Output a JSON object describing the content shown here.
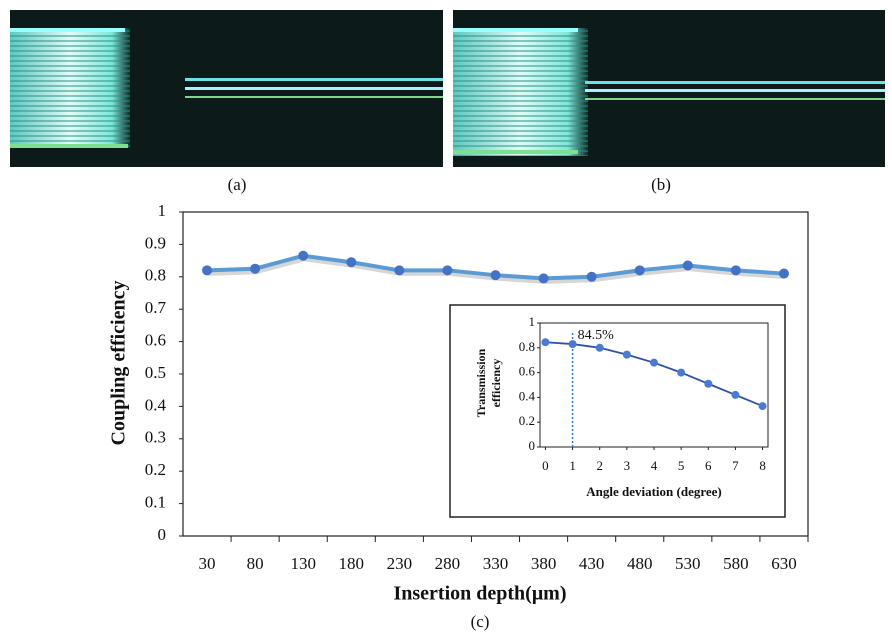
{
  "panels": [
    {
      "label": "(a)"
    },
    {
      "label": "(b)"
    }
  ],
  "caption": "(c)",
  "chart_data": [
    {
      "type": "line",
      "y_label": "Coupling efficiency",
      "x_label": "Insertion depth(μm)",
      "categories": [
        "30",
        "80",
        "130",
        "180",
        "230",
        "280",
        "330",
        "380",
        "430",
        "480",
        "530",
        "580",
        "630"
      ],
      "series": [
        {
          "color": "#5b9bd5",
          "marker_color": "#4472c4",
          "values": [
            0.82,
            0.825,
            0.865,
            0.845,
            0.82,
            0.82,
            0.805,
            0.795,
            0.8,
            0.82,
            0.835,
            0.82,
            0.81
          ]
        }
      ],
      "ylim": [
        0,
        1
      ],
      "yticks": [
        0,
        0.1,
        0.2,
        0.3,
        0.4,
        0.5,
        0.6,
        0.7,
        0.8,
        0.9,
        1
      ]
    },
    {
      "type": "line",
      "y_label": [
        "Transmission",
        "efficiency"
      ],
      "x_label": "Angle deviation (degree)",
      "x": [
        0,
        1,
        2,
        3,
        4,
        5,
        6,
        7,
        8
      ],
      "series": [
        {
          "color": "#3050a8",
          "marker_color": "#4a7bd0",
          "values": [
            0.845,
            0.83,
            0.8,
            0.745,
            0.68,
            0.6,
            0.51,
            0.42,
            0.33
          ]
        }
      ],
      "xlim": [
        -0.2,
        8.2
      ],
      "xticks": [
        0,
        1,
        2,
        3,
        4,
        5,
        6,
        7,
        8
      ],
      "ylim": [
        0,
        1
      ],
      "yticks": [
        0,
        0.2,
        0.4,
        0.6,
        0.8,
        1
      ],
      "annotations": [
        {
          "text": "84.5%",
          "x": 1
        }
      ]
    }
  ]
}
